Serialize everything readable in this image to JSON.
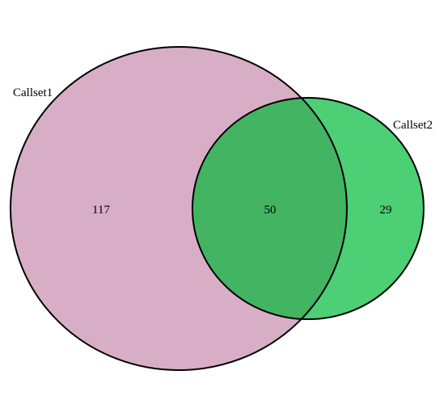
{
  "venn": {
    "sets": [
      {
        "name": "Callset1",
        "color": "#d8aec6"
      },
      {
        "name": "Callset2",
        "color": "#4ccf75"
      }
    ],
    "overlap_color": "#43b462",
    "counts": {
      "only_a": "117",
      "both": "50",
      "only_b": "29"
    }
  }
}
